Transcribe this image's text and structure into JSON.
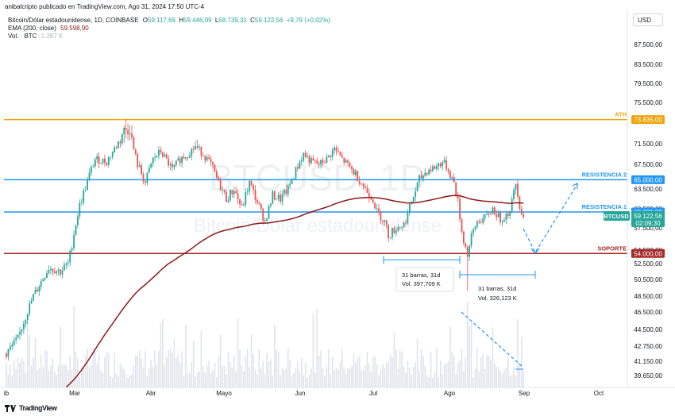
{
  "header": {
    "published": "anibalcripto publicado en TradingView.com, Ago 31, 2024 17:50 UTC-4",
    "symbol": "Bitcoin/Dólar estadounidense, 1D, COINBASE",
    "o_label": "O",
    "o_value": "59.117,69",
    "h_label": "H",
    "h_value": "59.446,99",
    "l_label": "L",
    "l_value": "58.739,31",
    "c_label": "C",
    "c_value": "59.122,56",
    "change": "+9,79 (+0,02%)",
    "ema_label": "EMA (200, close)",
    "ema_value": "59.598,90",
    "vol_label": "Vol. · BTC",
    "vol_value": "1.287 K"
  },
  "currency_button": "USD",
  "watermark": {
    "line1": "BTCUSD, 1D",
    "line2": "Bitcoin/Dólar estadounidense"
  },
  "footer": {
    "brand": "TradingView"
  },
  "colors": {
    "up": "#26a69a",
    "down": "#ef5350",
    "ema": "#8b1a1a",
    "ath": "#f0a30a",
    "resistance": "#2196f3",
    "support": "#a52a2a",
    "volume": "#e0e3eb",
    "badge_price": "#26a69a"
  },
  "chart_data": {
    "type": "candlestick",
    "title": "Bitcoin/Dólar estadounidense, 1D, COINBASE",
    "x_axis": {
      "labels": [
        "ib",
        "Mar",
        "Abr",
        "Mayo",
        "Jun",
        "Jul",
        "Ago",
        "Sep",
        "Oct"
      ]
    },
    "y_axis": {
      "scale": "log",
      "ticks": [
        "92.500,00",
        "87.500,00",
        "83.500,00",
        "79.500,00",
        "75.500,00",
        "71.500,00",
        "67.500,00",
        "63.500,00",
        "60.500,00",
        "57.500,00",
        "54.500,00",
        "52.500,00",
        "50.500,00",
        "48.500,00",
        "46.500,00",
        "44.500,00",
        "42.750,00",
        "41.150,00",
        "39.650,00"
      ],
      "tick_values": [
        92500,
        87500,
        83500,
        79500,
        75500,
        71500,
        67500,
        63500,
        60500,
        57500,
        54500,
        52500,
        50500,
        48500,
        46500,
        44500,
        42750,
        41150,
        39650
      ],
      "range": [
        38500,
        96000
      ]
    },
    "levels": [
      {
        "name": "ATH",
        "value": 73835,
        "label": "73.835,00",
        "color": "#f0a30a"
      },
      {
        "name": "RESISTENCIA 2",
        "value": 65000,
        "label": "65.000,00",
        "color": "#2196f3"
      },
      {
        "name": "RESISTENCIA 1",
        "value": 60000,
        "label": "60.000,00",
        "color": "#2196f3"
      },
      {
        "name": "SOPORTE",
        "value": 54000,
        "label": "54.000,00",
        "color": "#a52a2a"
      }
    ],
    "last_price": {
      "symbol": "BTCUSD",
      "value": 59122.56,
      "label": "59.122,56",
      "countdown": "02:09:30"
    },
    "measurements": [
      {
        "bars": "31 barras, 31d",
        "volume": "Vol. 397,709 K"
      },
      {
        "bars": "31 barras, 31d",
        "volume": "Vol. 326,123 K"
      }
    ],
    "series": [
      {
        "name": "EMA (200, close)"
      }
    ]
  }
}
